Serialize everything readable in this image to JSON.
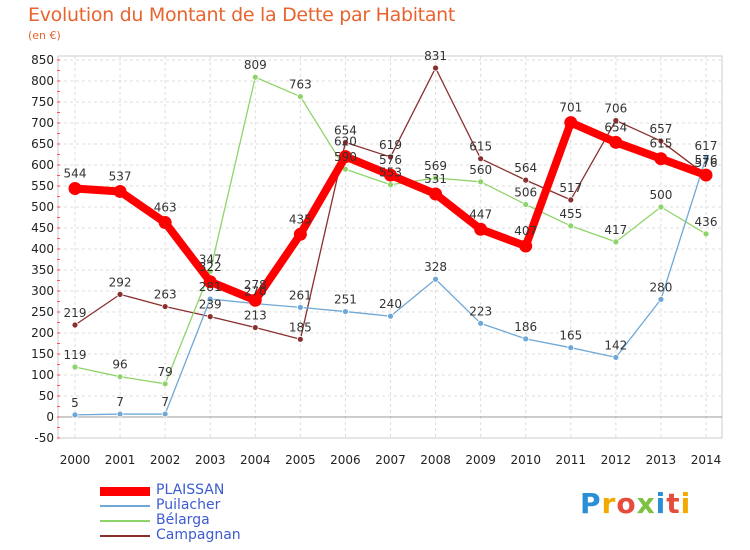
{
  "chart_data": {
    "type": "line",
    "title": "Evolution du Montant de la Dette par Habitant",
    "subtitle": "(en €)",
    "x": [
      "2000",
      "2001",
      "2002",
      "2003",
      "2004",
      "2005",
      "2006",
      "2007",
      "2008",
      "2009",
      "2010",
      "2011",
      "2012",
      "2013",
      "2014"
    ],
    "ylim": [
      -50,
      850
    ],
    "yticks": [
      -50,
      0,
      50,
      100,
      150,
      200,
      250,
      300,
      350,
      400,
      450,
      500,
      550,
      600,
      650,
      700,
      750,
      800,
      850
    ],
    "grid": true,
    "legend_position": "bottom-left",
    "series": [
      {
        "name": "PLAISSAN",
        "color": "#ff0000",
        "values": [
          544,
          537,
          463,
          322,
          278,
          435,
          620,
          576,
          531,
          447,
          407,
          701,
          654,
          615,
          576
        ],
        "labels": [
          "544",
          "537",
          "463",
          "322",
          "278",
          "435",
          "620",
          "576",
          "531",
          "447",
          "407",
          "701",
          "654",
          "615",
          "576"
        ]
      },
      {
        "name": "Puilacher",
        "color": "#6fa8d6",
        "values": [
          5,
          7,
          7,
          281,
          270,
          261,
          251,
          240,
          328,
          223,
          186,
          165,
          142,
          280,
          617
        ],
        "labels": [
          "5",
          "7",
          "7",
          "281",
          "270",
          "261",
          "251",
          "240",
          "328",
          "223",
          "186",
          "165",
          "142",
          "280",
          "617"
        ]
      },
      {
        "name": "Bélarga",
        "color": "#8fd46a",
        "values": [
          119,
          96,
          79,
          347,
          809,
          763,
          590,
          553,
          569,
          560,
          506,
          455,
          417,
          500,
          436
        ],
        "labels": [
          "119",
          "96",
          "79",
          "347",
          "809",
          "763",
          "590",
          "553",
          "569",
          "560",
          "506",
          "455",
          "417",
          "500",
          "436"
        ]
      },
      {
        "name": "Campagnan",
        "color": "#8b2e2e",
        "values": [
          219,
          292,
          263,
          239,
          213,
          185,
          654,
          619,
          831,
          615,
          564,
          517,
          706,
          657,
          576
        ],
        "labels": [
          "219",
          "292",
          "263",
          "239",
          "213",
          "185",
          "654",
          "619",
          "831",
          "615",
          "564",
          "517",
          "706",
          "657",
          "576"
        ]
      }
    ]
  },
  "branding": {
    "logo_text": "Proxiti"
  }
}
